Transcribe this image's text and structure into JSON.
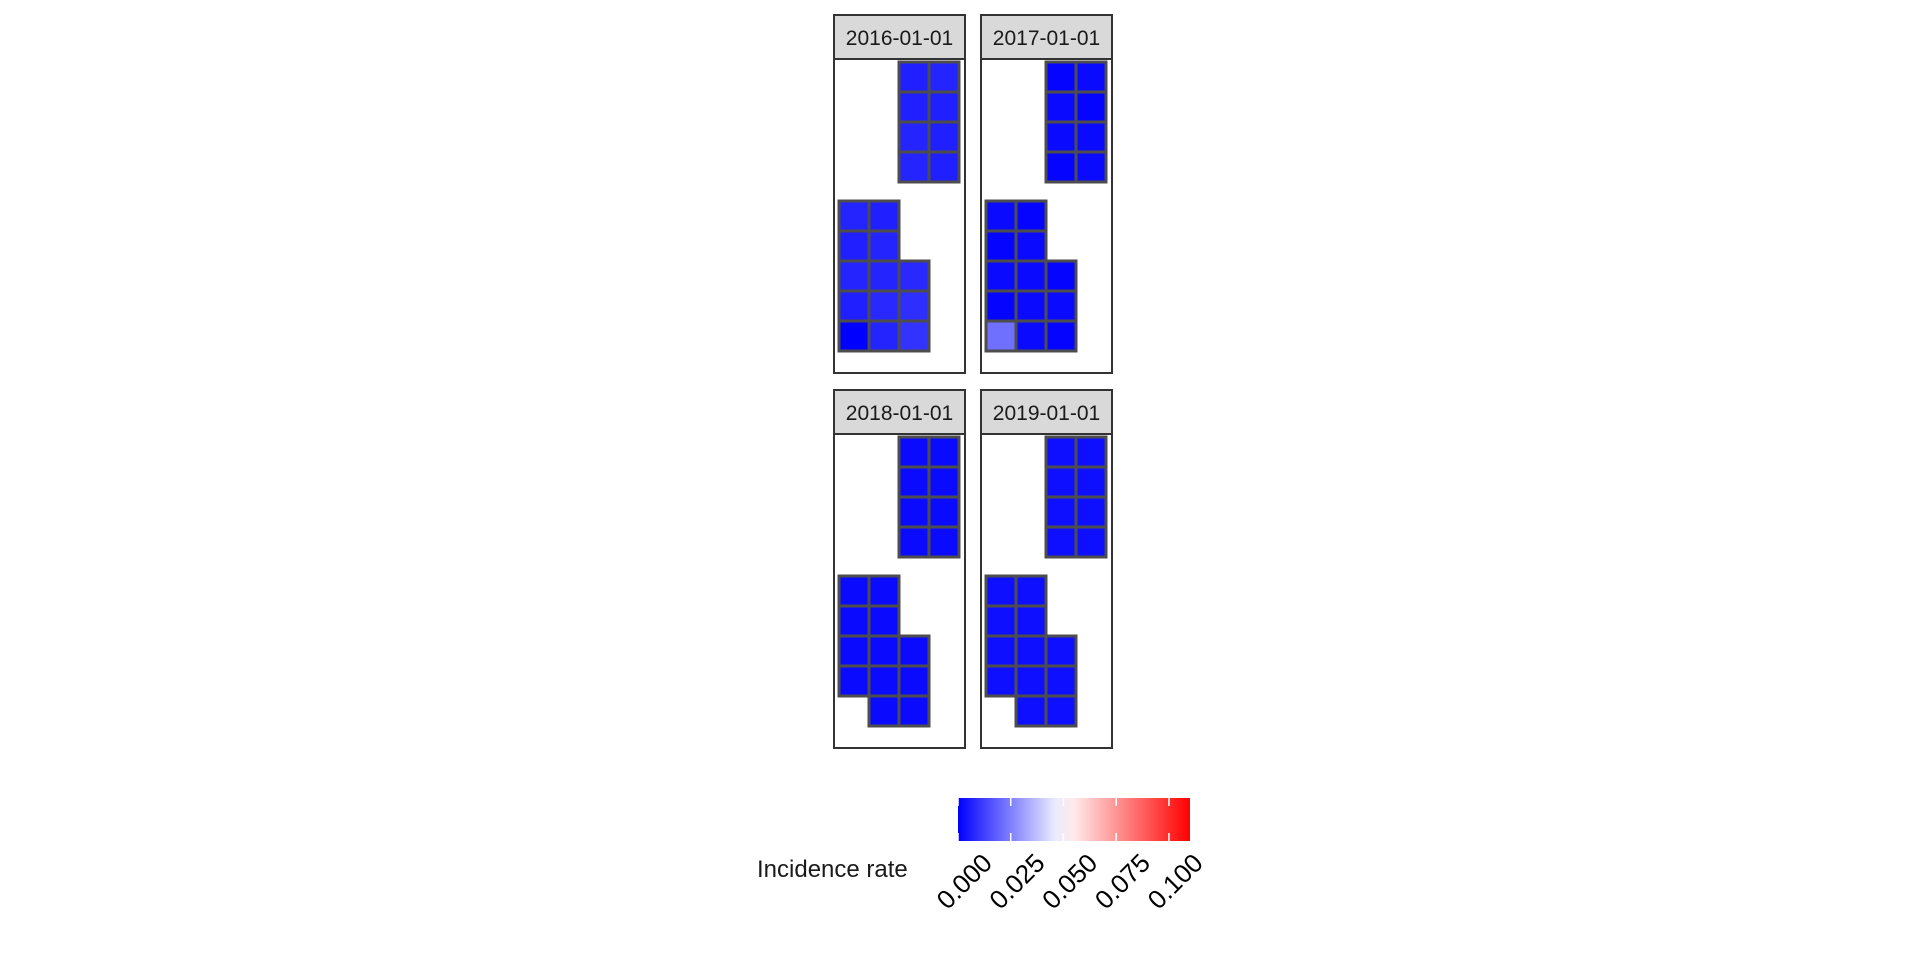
{
  "chart_data": {
    "type": "heatmap",
    "title": "",
    "grid": false,
    "legend": {
      "title": "Incidence rate",
      "position": "bottom",
      "colors": {
        "low": "#0000FF",
        "mid": "#FFFFFF",
        "high": "#FF0000"
      },
      "range": [
        0.0,
        0.11
      ],
      "midpoint": 0.05,
      "ticks": [
        "0.000",
        "0.025",
        "0.050",
        "0.075",
        "0.100"
      ],
      "tick_values": [
        0.0,
        0.025,
        0.05,
        0.075,
        0.1
      ]
    },
    "panels": [
      {
        "label": "2016-01-01",
        "cells": [
          {
            "col": 3,
            "row": 1,
            "value": 0.006
          },
          {
            "col": 4,
            "row": 1,
            "value": 0.007
          },
          {
            "col": 3,
            "row": 2,
            "value": 0.006
          },
          {
            "col": 4,
            "row": 2,
            "value": 0.006
          },
          {
            "col": 3,
            "row": 3,
            "value": 0.007
          },
          {
            "col": 4,
            "row": 3,
            "value": 0.006
          },
          {
            "col": 3,
            "row": 4,
            "value": 0.007
          },
          {
            "col": 4,
            "row": 4,
            "value": 0.006
          },
          {
            "col": 1,
            "row": 6,
            "value": 0.007
          },
          {
            "col": 2,
            "row": 6,
            "value": 0.006
          },
          {
            "col": 1,
            "row": 7,
            "value": 0.006
          },
          {
            "col": 2,
            "row": 7,
            "value": 0.007
          },
          {
            "col": 1,
            "row": 8,
            "value": 0.007
          },
          {
            "col": 2,
            "row": 8,
            "value": 0.007
          },
          {
            "col": 3,
            "row": 8,
            "value": 0.008
          },
          {
            "col": 1,
            "row": 9,
            "value": 0.006
          },
          {
            "col": 2,
            "row": 9,
            "value": 0.008
          },
          {
            "col": 3,
            "row": 9,
            "value": 0.009
          },
          {
            "col": 1,
            "row": 10,
            "value": 0.0
          },
          {
            "col": 2,
            "row": 10,
            "value": 0.007
          },
          {
            "col": 3,
            "row": 10,
            "value": 0.01
          }
        ]
      },
      {
        "label": "2017-01-01",
        "cells": [
          {
            "col": 3,
            "row": 1,
            "value": 0.001
          },
          {
            "col": 4,
            "row": 1,
            "value": 0.002
          },
          {
            "col": 3,
            "row": 2,
            "value": 0.002
          },
          {
            "col": 4,
            "row": 2,
            "value": 0.001
          },
          {
            "col": 3,
            "row": 3,
            "value": 0.002
          },
          {
            "col": 4,
            "row": 3,
            "value": 0.002
          },
          {
            "col": 3,
            "row": 4,
            "value": 0.001
          },
          {
            "col": 4,
            "row": 4,
            "value": 0.002
          },
          {
            "col": 1,
            "row": 6,
            "value": 0.002
          },
          {
            "col": 2,
            "row": 6,
            "value": 0.001
          },
          {
            "col": 1,
            "row": 7,
            "value": 0.001
          },
          {
            "col": 2,
            "row": 7,
            "value": 0.002
          },
          {
            "col": 1,
            "row": 8,
            "value": 0.002
          },
          {
            "col": 2,
            "row": 8,
            "value": 0.002
          },
          {
            "col": 3,
            "row": 8,
            "value": 0.001
          },
          {
            "col": 1,
            "row": 9,
            "value": 0.001
          },
          {
            "col": 2,
            "row": 9,
            "value": 0.002
          },
          {
            "col": 3,
            "row": 9,
            "value": 0.002
          },
          {
            "col": 1,
            "row": 10,
            "value": 0.022
          },
          {
            "col": 2,
            "row": 10,
            "value": 0.002
          },
          {
            "col": 3,
            "row": 10,
            "value": 0.001
          }
        ]
      },
      {
        "label": "2018-01-01",
        "cells": [
          {
            "col": 3,
            "row": 1,
            "value": 0.002
          },
          {
            "col": 4,
            "row": 1,
            "value": 0.002
          },
          {
            "col": 3,
            "row": 2,
            "value": 0.002
          },
          {
            "col": 4,
            "row": 2,
            "value": 0.002
          },
          {
            "col": 3,
            "row": 3,
            "value": 0.002
          },
          {
            "col": 4,
            "row": 3,
            "value": 0.002
          },
          {
            "col": 3,
            "row": 4,
            "value": 0.002
          },
          {
            "col": 4,
            "row": 4,
            "value": 0.002
          },
          {
            "col": 1,
            "row": 6,
            "value": 0.002
          },
          {
            "col": 2,
            "row": 6,
            "value": 0.002
          },
          {
            "col": 1,
            "row": 7,
            "value": 0.002
          },
          {
            "col": 2,
            "row": 7,
            "value": 0.002
          },
          {
            "col": 1,
            "row": 8,
            "value": 0.002
          },
          {
            "col": 2,
            "row": 8,
            "value": 0.002
          },
          {
            "col": 3,
            "row": 8,
            "value": 0.002
          },
          {
            "col": 1,
            "row": 9,
            "value": 0.002
          },
          {
            "col": 2,
            "row": 9,
            "value": 0.002
          },
          {
            "col": 3,
            "row": 9,
            "value": 0.002
          },
          {
            "col": 2,
            "row": 10,
            "value": 0.002
          },
          {
            "col": 3,
            "row": 10,
            "value": 0.002
          }
        ]
      },
      {
        "label": "2019-01-01",
        "cells": [
          {
            "col": 3,
            "row": 1,
            "value": 0.003
          },
          {
            "col": 4,
            "row": 1,
            "value": 0.003
          },
          {
            "col": 3,
            "row": 2,
            "value": 0.003
          },
          {
            "col": 4,
            "row": 2,
            "value": 0.003
          },
          {
            "col": 3,
            "row": 3,
            "value": 0.003
          },
          {
            "col": 4,
            "row": 3,
            "value": 0.003
          },
          {
            "col": 3,
            "row": 4,
            "value": 0.003
          },
          {
            "col": 4,
            "row": 4,
            "value": 0.003
          },
          {
            "col": 1,
            "row": 6,
            "value": 0.003
          },
          {
            "col": 2,
            "row": 6,
            "value": 0.003
          },
          {
            "col": 1,
            "row": 7,
            "value": 0.003
          },
          {
            "col": 2,
            "row": 7,
            "value": 0.003
          },
          {
            "col": 1,
            "row": 8,
            "value": 0.003
          },
          {
            "col": 2,
            "row": 8,
            "value": 0.003
          },
          {
            "col": 3,
            "row": 8,
            "value": 0.003
          },
          {
            "col": 1,
            "row": 9,
            "value": 0.003
          },
          {
            "col": 2,
            "row": 9,
            "value": 0.003
          },
          {
            "col": 3,
            "row": 9,
            "value": 0.003
          },
          {
            "col": 2,
            "row": 10,
            "value": 0.003
          },
          {
            "col": 3,
            "row": 10,
            "value": 0.003
          }
        ]
      }
    ]
  }
}
